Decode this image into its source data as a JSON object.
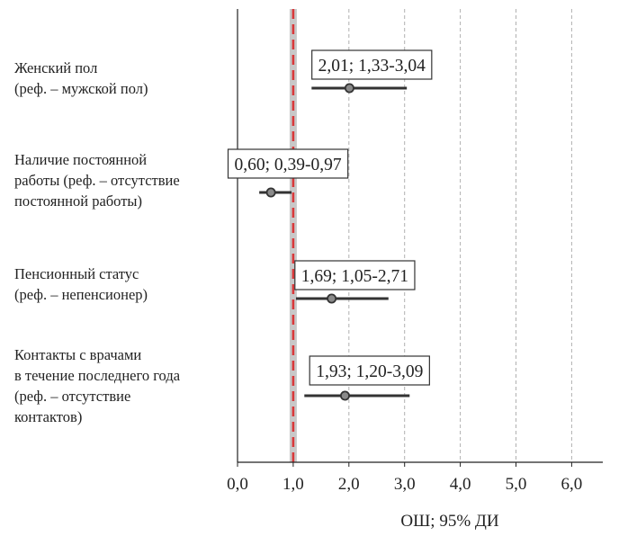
{
  "chart_data": {
    "type": "forest",
    "xlabel": "ОШ; 95% ДИ",
    "xlim": [
      0,
      6.5
    ],
    "xticks": [
      0,
      1,
      2,
      3,
      4,
      5,
      6
    ],
    "xtick_labels": [
      "0,0",
      "1,0",
      "2,0",
      "3,0",
      "4,0",
      "5,0",
      "6,0"
    ],
    "reference_line": 1.0,
    "grid": "vertical dashed at 2,3,4,5,6",
    "rows": [
      {
        "label_lines": [
          "Женский пол",
          "(реф. – мужской пол)"
        ],
        "or": 2.01,
        "ci_low": 1.33,
        "ci_high": 3.04,
        "annotation": "2,01; 1,33-3,04"
      },
      {
        "label_lines": [
          "Наличие постоянной",
          "работы (реф. – отсутствие",
          "постоянной работы)"
        ],
        "or": 0.6,
        "ci_low": 0.39,
        "ci_high": 0.97,
        "annotation": "0,60; 0,39-0,97"
      },
      {
        "label_lines": [
          "Пенсионный статус",
          "(реф. – непенсионер)"
        ],
        "or": 1.69,
        "ci_low": 1.05,
        "ci_high": 2.71,
        "annotation": "1,69; 1,05-2,71"
      },
      {
        "label_lines": [
          "Контакты с врачами",
          "в течение последнего года",
          "(реф. – отсутствие",
          "контактов)"
        ],
        "or": 1.93,
        "ci_low": 1.2,
        "ci_high": 3.09,
        "annotation": "1,93; 1,20-3,09"
      }
    ],
    "colors": {
      "reference_line": "#d9393b",
      "reference_band": "#c8c8c8",
      "marker_fill": "#8a8a8a",
      "marker_stroke": "#333333",
      "ci_line": "#333333",
      "grid": "#b0b0b0"
    }
  }
}
